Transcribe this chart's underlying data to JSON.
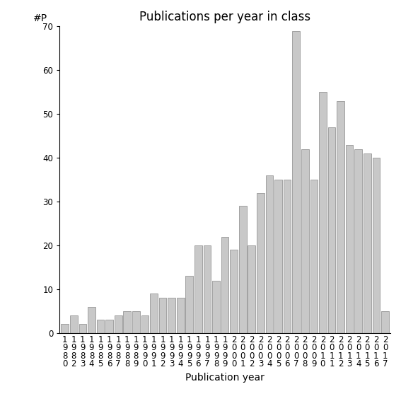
{
  "title": "Publications per year in class",
  "xlabel": "Publication year",
  "ylabel": "#P",
  "ylim": [
    0,
    70
  ],
  "yticks": [
    0,
    10,
    20,
    30,
    40,
    50,
    60,
    70
  ],
  "bar_color": "#c8c8c8",
  "bar_edge_color": "#888888",
  "categories": [
    "1\n9\n8\n0",
    "1\n9\n8\n2",
    "1\n9\n8\n3",
    "1\n9\n8\n4",
    "1\n9\n8\n5",
    "1\n9\n8\n6",
    "1\n9\n8\n7",
    "1\n9\n8\n8",
    "1\n9\n8\n9",
    "1\n9\n9\n0",
    "1\n9\n9\n1",
    "1\n9\n9\n2",
    "1\n9\n9\n3",
    "1\n9\n9\n4",
    "1\n9\n9\n5",
    "1\n9\n9\n6",
    "1\n9\n9\n7",
    "1\n9\n9\n8",
    "1\n9\n9\n9",
    "2\n0\n0\n0",
    "2\n0\n0\n1",
    "2\n0\n0\n2",
    "2\n0\n0\n3",
    "2\n0\n0\n4",
    "2\n0\n0\n5",
    "2\n0\n0\n6",
    "2\n0\n0\n7",
    "2\n0\n0\n8",
    "2\n0\n0\n9",
    "2\n0\n1\n0",
    "2\n0\n1\n1",
    "2\n0\n1\n2",
    "2\n0\n1\n3",
    "2\n0\n1\n4",
    "2\n0\n1\n5",
    "2\n0\n1\n6",
    "2\n0\n1\n7"
  ],
  "values": [
    2,
    4,
    2,
    6,
    3,
    3,
    4,
    5,
    5,
    4,
    9,
    8,
    8,
    8,
    13,
    20,
    20,
    12,
    22,
    19,
    29,
    20,
    32,
    36,
    35,
    35,
    69,
    42,
    35,
    55,
    47,
    53,
    43,
    42,
    41,
    40,
    5
  ],
  "background_color": "#ffffff",
  "title_fontsize": 12,
  "label_fontsize": 10,
  "tick_fontsize": 8.5
}
